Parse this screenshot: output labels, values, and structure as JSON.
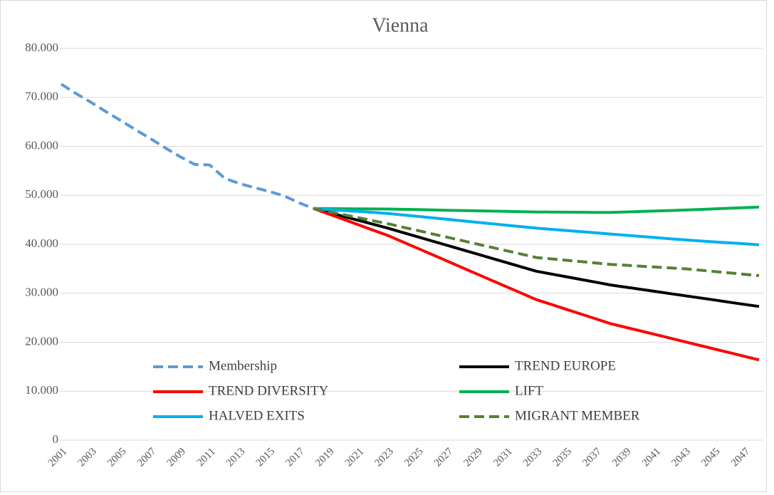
{
  "chart_data": {
    "type": "line",
    "title": "Vienna",
    "categories": [
      "2001",
      null,
      "2003",
      null,
      "2005",
      null,
      "2007",
      null,
      "2009",
      null,
      "2011",
      null,
      "2013",
      null,
      "2015",
      null,
      "2017",
      null,
      "2019",
      null,
      "2021",
      null,
      "2023",
      null,
      "2025",
      null,
      "2027",
      null,
      "2029",
      null,
      "2031",
      null,
      "2033",
      null,
      "2035",
      null,
      "2037",
      null,
      "2039",
      null,
      "2041",
      null,
      "2043",
      null,
      "2045",
      null,
      "2047",
      null
    ],
    "ylim": [
      0,
      80000
    ],
    "yticks": [
      0,
      {
        "value": 10000,
        "label": "10.000"
      },
      {
        "value": 20000,
        "label": "20.000"
      },
      {
        "value": 30000,
        "label": "30.000"
      },
      {
        "value": 40000,
        "label": "40.000"
      },
      {
        "value": 50000,
        "label": "50.000"
      },
      {
        "value": 60000,
        "label": "60.000"
      },
      {
        "value": 70000,
        "label": "70.000"
      },
      {
        "value": 80000,
        "label": "80.000"
      }
    ],
    "grid": true,
    "series": [
      {
        "name": "Membership",
        "color": "#5b9bd5",
        "dash": true,
        "values": [
          72700,
          70800,
          69000,
          67100,
          65300,
          63400,
          61600,
          59700,
          57900,
          56300,
          56200,
          53500,
          52400,
          51600,
          50800,
          49900,
          48500,
          47300,
          null,
          null,
          null,
          null,
          null,
          null,
          null,
          null,
          null,
          null,
          null,
          null,
          null,
          null,
          null,
          null,
          null,
          null,
          null,
          null,
          null,
          null,
          null,
          null,
          null,
          null,
          null,
          null,
          null,
          null
        ]
      },
      {
        "name": "TREND EUROPE",
        "color": "#000000",
        "dash": false,
        "values": [
          null,
          null,
          null,
          null,
          null,
          null,
          null,
          null,
          null,
          null,
          null,
          null,
          null,
          null,
          null,
          null,
          null,
          47300,
          46500,
          45700,
          44900,
          44100,
          43300,
          42420,
          41540,
          40660,
          39780,
          38900,
          38020,
          37140,
          36260,
          35380,
          34500,
          33940,
          33380,
          32820,
          32260,
          31700,
          31260,
          30820,
          30380,
          29940,
          29500,
          29060,
          28620,
          28180,
          27740,
          27300
        ]
      },
      {
        "name": "TREND DIVERSITY",
        "color": "#ff0000",
        "dash": false,
        "values": [
          null,
          null,
          null,
          null,
          null,
          null,
          null,
          null,
          null,
          null,
          null,
          null,
          null,
          null,
          null,
          null,
          null,
          47300,
          46200,
          45100,
          44000,
          42900,
          41800,
          40490,
          39180,
          37870,
          36560,
          35250,
          33940,
          32630,
          31320,
          30010,
          28700,
          27720,
          26740,
          25760,
          24780,
          23800,
          23060,
          22320,
          21580,
          20840,
          20100,
          19360,
          18620,
          17880,
          17140,
          16400
        ]
      },
      {
        "name": "LIFT",
        "color": "#00b050",
        "dash": false,
        "values": [
          null,
          null,
          null,
          null,
          null,
          null,
          null,
          null,
          null,
          null,
          null,
          null,
          null,
          null,
          null,
          null,
          null,
          47300,
          47280,
          47260,
          47240,
          47220,
          47200,
          47140,
          47080,
          47020,
          46960,
          46900,
          46840,
          46780,
          46720,
          46660,
          46600,
          46580,
          46560,
          46540,
          46520,
          46500,
          46600,
          46700,
          46800,
          46900,
          47000,
          47120,
          47240,
          47360,
          47480,
          47600
        ]
      },
      {
        "name": "HALVED EXITS",
        "color": "#00b0f0",
        "dash": false,
        "values": [
          null,
          null,
          null,
          null,
          null,
          null,
          null,
          null,
          null,
          null,
          null,
          null,
          null,
          null,
          null,
          null,
          null,
          47300,
          47100,
          46900,
          46700,
          46500,
          46300,
          46000,
          45700,
          45400,
          45100,
          44800,
          44500,
          44200,
          43900,
          43600,
          43300,
          43060,
          42820,
          42580,
          42340,
          42100,
          41860,
          41620,
          41380,
          41140,
          40900,
          40700,
          40500,
          40300,
          40100,
          39900
        ]
      },
      {
        "name": "MIGRANT MEMBER",
        "color": "#548235",
        "dash": true,
        "values": [
          null,
          null,
          null,
          null,
          null,
          null,
          null,
          null,
          null,
          null,
          null,
          null,
          null,
          null,
          null,
          null,
          null,
          47300,
          46680,
          46060,
          45440,
          44820,
          44200,
          43510,
          42820,
          42130,
          41440,
          40750,
          40060,
          39370,
          38680,
          37990,
          37300,
          37020,
          36740,
          36460,
          36180,
          35900,
          35720,
          35540,
          35360,
          35180,
          35000,
          34720,
          34440,
          34160,
          33880,
          33600
        ]
      }
    ]
  }
}
